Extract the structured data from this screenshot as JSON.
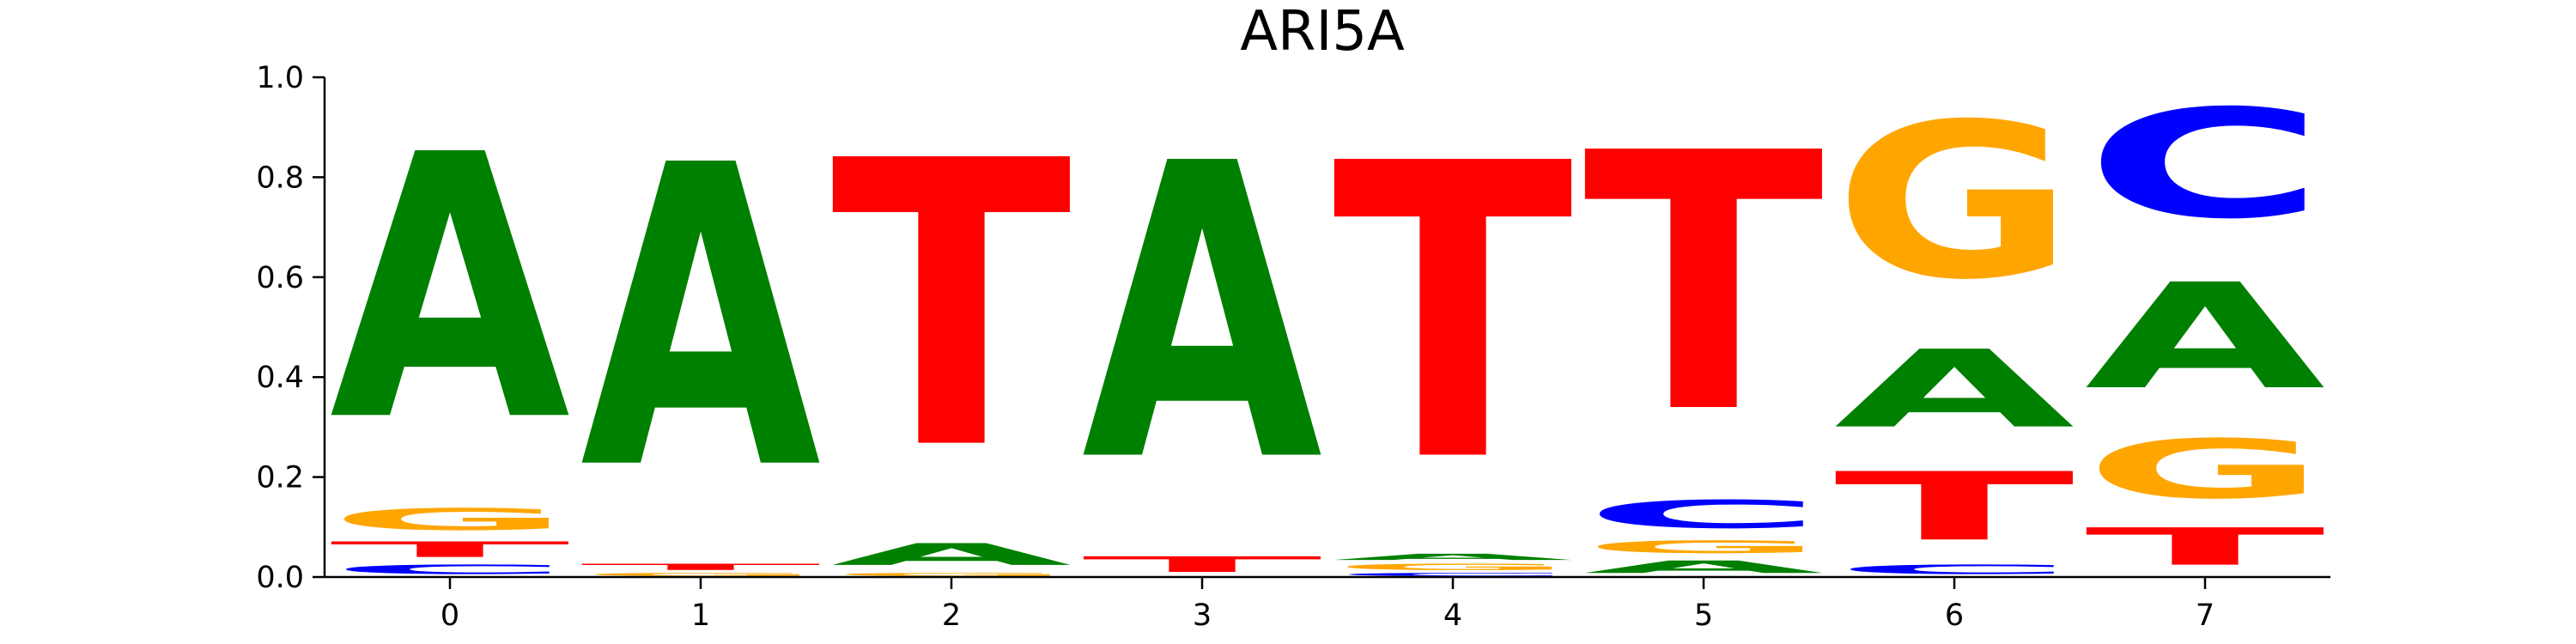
{
  "chart_data": {
    "type": "sequence-logo",
    "title": "ARI5A",
    "xlabel": "",
    "ylabel": "",
    "ylim": [
      0.0,
      1.0
    ],
    "ytick_labels": [
      "0.0",
      "0.2",
      "0.4",
      "0.6",
      "0.8",
      "1.0"
    ],
    "yticks": [
      0.0,
      0.2,
      0.4,
      0.6,
      0.8,
      1.0
    ],
    "xtick_labels": [
      "0",
      "1",
      "2",
      "3",
      "4",
      "5",
      "6",
      "7"
    ],
    "colors": {
      "A": "#008000",
      "C": "#0000ff",
      "G": "#ffa500",
      "T": "#ff0000"
    },
    "positions": [
      {
        "position": 0,
        "stack": [
          {
            "base": "C",
            "value": 0.03
          },
          {
            "base": "T",
            "value": 0.05
          },
          {
            "base": "G",
            "value": 0.07
          },
          {
            "base": "A",
            "value": 0.85
          }
        ]
      },
      {
        "position": 1,
        "stack": [
          {
            "base": "G",
            "value": 0.01
          },
          {
            "base": "T",
            "value": 0.02
          },
          {
            "base": "A",
            "value": 0.97
          }
        ]
      },
      {
        "position": 2,
        "stack": [
          {
            "base": "G",
            "value": 0.01
          },
          {
            "base": "A",
            "value": 0.07
          },
          {
            "base": "T",
            "value": 0.92
          }
        ]
      },
      {
        "position": 3,
        "stack": [
          {
            "base": "T",
            "value": 0.05
          },
          {
            "base": "A",
            "value": 0.95
          }
        ]
      },
      {
        "position": 4,
        "stack": [
          {
            "base": "C",
            "value": 0.01
          },
          {
            "base": "G",
            "value": 0.02
          },
          {
            "base": "A",
            "value": 0.02
          },
          {
            "base": "T",
            "value": 0.95
          }
        ]
      },
      {
        "position": 5,
        "stack": [
          {
            "base": "A",
            "value": 0.04
          },
          {
            "base": "G",
            "value": 0.04
          },
          {
            "base": "C",
            "value": 0.09
          },
          {
            "base": "T",
            "value": 0.83
          }
        ]
      },
      {
        "position": 6,
        "stack": [
          {
            "base": "C",
            "value": 0.03
          },
          {
            "base": "T",
            "value": 0.22
          },
          {
            "base": "A",
            "value": 0.25
          },
          {
            "base": "G",
            "value": 0.5
          }
        ]
      },
      {
        "position": 7,
        "stack": [
          {
            "base": "T",
            "value": 0.12
          },
          {
            "base": "G",
            "value": 0.19
          },
          {
            "base": "A",
            "value": 0.34
          },
          {
            "base": "C",
            "value": 0.35
          }
        ]
      }
    ]
  }
}
